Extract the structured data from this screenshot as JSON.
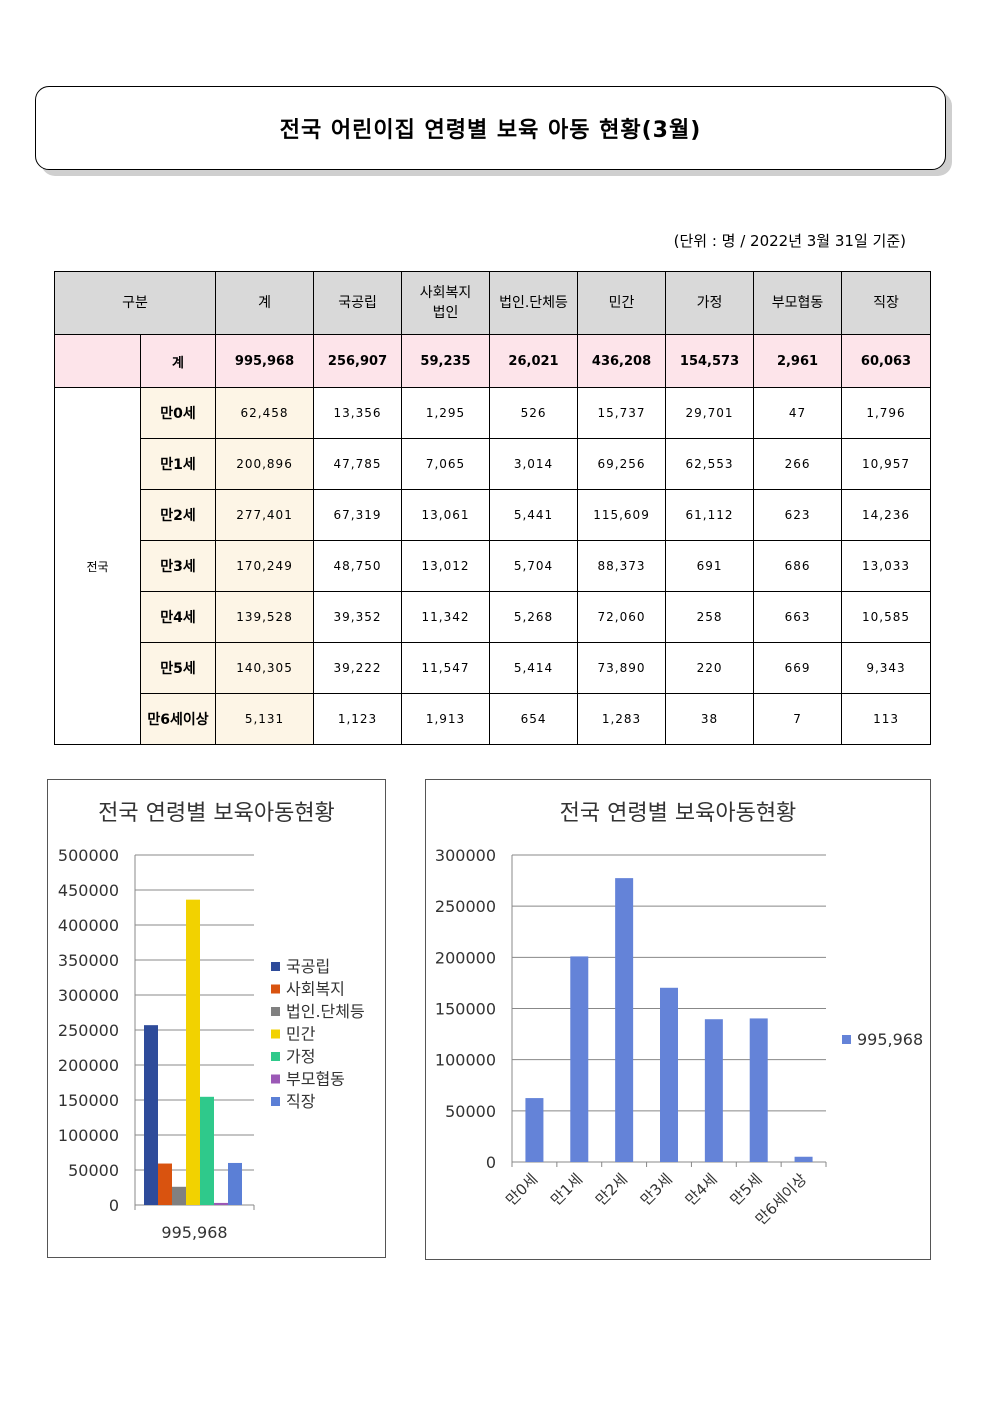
{
  "title": "전국 어린이집 연령별 보육 아동 현황(3월)",
  "unit_note": "(단위 : 명 / 2022년 3월 31일 기준)",
  "table": {
    "header": [
      "구분",
      "계",
      "국공립",
      "사회복지\n법인",
      "법인.단체등",
      "민간",
      "가정",
      "부모협동",
      "직장"
    ],
    "total_label": "계",
    "total": [
      "995,968",
      "256,907",
      "59,235",
      "26,021",
      "436,208",
      "154,573",
      "2,961",
      "60,063"
    ],
    "region": "전국",
    "rows": [
      {
        "age": "만0세",
        "values": [
          "62,458",
          "13,356",
          "1,295",
          "526",
          "15,737",
          "29,701",
          "47",
          "1,796"
        ]
      },
      {
        "age": "만1세",
        "values": [
          "200,896",
          "47,785",
          "7,065",
          "3,014",
          "69,256",
          "62,553",
          "266",
          "10,957"
        ]
      },
      {
        "age": "만2세",
        "values": [
          "277,401",
          "67,319",
          "13,061",
          "5,441",
          "115,609",
          "61,112",
          "623",
          "14,236"
        ]
      },
      {
        "age": "만3세",
        "values": [
          "170,249",
          "48,750",
          "13,012",
          "5,704",
          "88,373",
          "691",
          "686",
          "13,033"
        ]
      },
      {
        "age": "만4세",
        "values": [
          "139,528",
          "39,352",
          "11,342",
          "5,268",
          "72,060",
          "258",
          "663",
          "10,585"
        ]
      },
      {
        "age": "만5세",
        "values": [
          "140,305",
          "39,222",
          "11,547",
          "5,414",
          "73,890",
          "220",
          "669",
          "9,343"
        ]
      },
      {
        "age": "만6세이상",
        "values": [
          "5,131",
          "1,123",
          "1,913",
          "654",
          "1,283",
          "38",
          "7",
          "113"
        ]
      }
    ]
  },
  "chart_data": [
    {
      "type": "bar",
      "title": "전국 연령별 보육아동현황",
      "categories": [
        "995,968"
      ],
      "ylim": [
        0,
        500000
      ],
      "yticks": [
        0,
        50000,
        100000,
        150000,
        200000,
        250000,
        300000,
        350000,
        400000,
        450000,
        500000
      ],
      "grid": true,
      "legend": "right",
      "series": [
        {
          "name": "국공립",
          "values": [
            256907
          ],
          "color": "#2e4b9a"
        },
        {
          "name": "사회복지",
          "values": [
            59235
          ],
          "color": "#d9530f"
        },
        {
          "name": "법인.단체등",
          "values": [
            26021
          ],
          "color": "#808080"
        },
        {
          "name": "민간",
          "values": [
            436208
          ],
          "color": "#f2d200"
        },
        {
          "name": "가정",
          "values": [
            154573
          ],
          "color": "#2fc98b"
        },
        {
          "name": "부모협동",
          "values": [
            2961
          ],
          "color": "#9b59b6"
        },
        {
          "name": "직장",
          "values": [
            60063
          ],
          "color": "#5b7fd6"
        }
      ]
    },
    {
      "type": "bar",
      "title": "전국 연령별 보육아동현황",
      "categories": [
        "만0세",
        "만1세",
        "만2세",
        "만3세",
        "만4세",
        "만5세",
        "만6세이상"
      ],
      "ylim": [
        0,
        300000
      ],
      "yticks": [
        0,
        50000,
        100000,
        150000,
        200000,
        250000,
        300000
      ],
      "grid": true,
      "legend": "right",
      "series": [
        {
          "name": "995,968",
          "values": [
            62458,
            200896,
            277401,
            170249,
            139528,
            140305,
            5131
          ],
          "color": "#6483d8"
        }
      ]
    }
  ]
}
